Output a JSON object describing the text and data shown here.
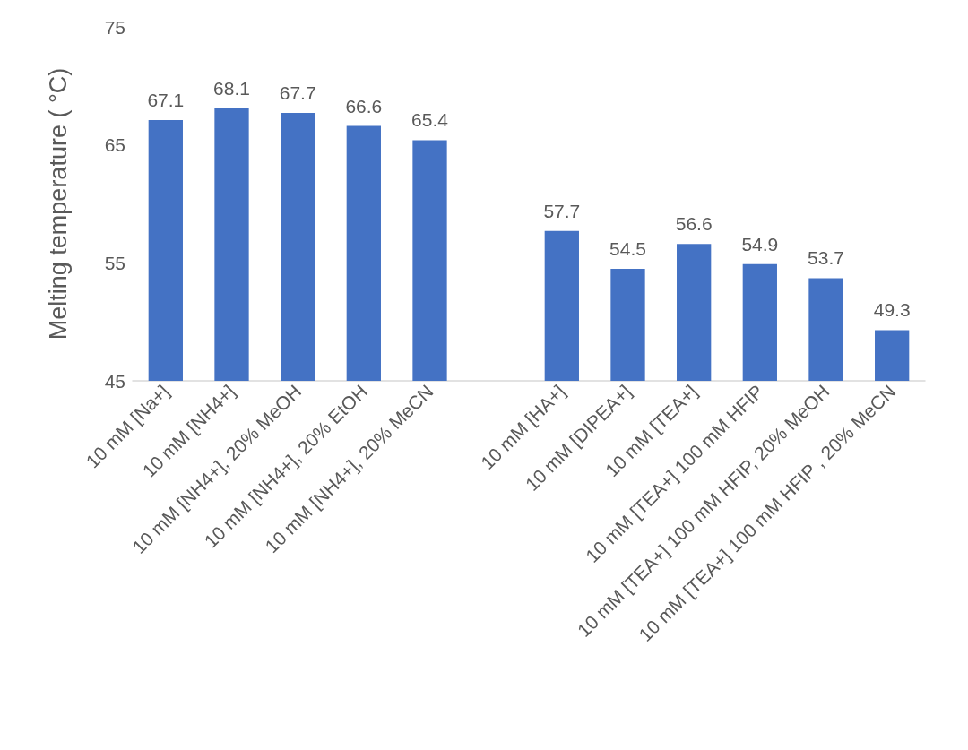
{
  "chart_data": {
    "type": "bar",
    "ylabel": "Melting temperature ( °C)",
    "categories": [
      "10 mM [Na+]",
      "10 mM [NH4+]",
      "10 mM [NH4+], 20% MeOH",
      "10 mM [NH4+], 20% EtOH",
      "10 mM [NH4+], 20% MeCN",
      null,
      "10 mM [HA+]",
      "10 mM [DIPEA+]",
      "10 mM [TEA+]",
      "10 mM [TEA+] 100 mM HFIP",
      "10 mM [TEA+] 100 mM HFIP, 20% MeOH",
      "10 mM [TEA+] 100 mM HFIP , 20% MeCN"
    ],
    "values": [
      67.1,
      68.1,
      67.7,
      66.6,
      65.4,
      null,
      57.7,
      54.5,
      56.6,
      54.9,
      53.7,
      49.3
    ],
    "color": "#4472c4",
    "ylim": [
      45,
      75
    ],
    "yticks": [
      45,
      55,
      65,
      75
    ],
    "grid": false,
    "data_labels": true
  }
}
